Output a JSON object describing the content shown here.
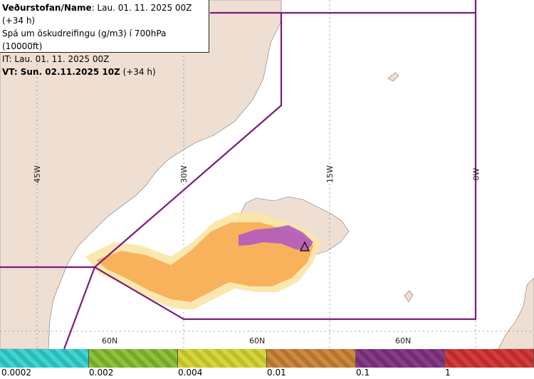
{
  "header": {
    "line1_bold": "Veðurstofan/Name",
    "line1_rest": ": Lau. 01. 11. 2025 00Z (+34 h)",
    "line2": "Spá um öskudreifingu (g/m3) í 700hPa (10000ft)",
    "line3": "IT: Lau. 01. 11. 2025 00Z",
    "line4_bold": "VT: Sun. 02.11.2025 10Z",
    "line4_rest": " (+34 h)"
  },
  "map": {
    "longitude_labels": [
      "45W",
      "30W",
      "15W",
      "0W"
    ],
    "latitude_labels": [
      "60N",
      "60N",
      "60N"
    ],
    "colors": {
      "land": "#efdfd3",
      "sea": "#ffffff",
      "graticule": "#8a8a8a",
      "boundary": "#7a1a80",
      "ash_low": "#fbe6a6",
      "ash_mid": "#f9b25c",
      "ash_high": "#b05ac0",
      "volcano_marker": "#000000"
    },
    "icons": [
      "volcano-triangle-icon"
    ]
  },
  "legend": {
    "swatches": [
      {
        "color": "#3bd6d3",
        "pattern": "#2fb8b6"
      },
      {
        "color": "#8ec23a",
        "pattern": "#76a82c"
      },
      {
        "color": "#d6d63a",
        "pattern": "#bfbf2c"
      },
      {
        "color": "#cf8a3b",
        "pattern": "#b57330"
      },
      {
        "color": "#8a3a8a",
        "pattern": "#712e71"
      },
      {
        "color": "#d63a3a",
        "pattern": "#bb2c2c"
      }
    ],
    "labels": [
      "0.0002",
      "0.002",
      "0.004",
      "0.01",
      "0.1",
      "1"
    ]
  }
}
